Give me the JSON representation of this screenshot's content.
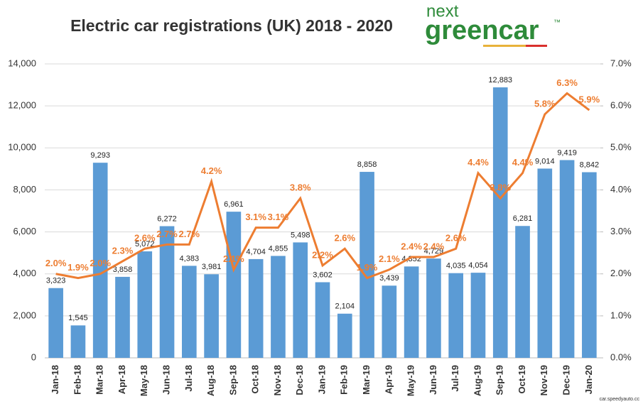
{
  "logo": {
    "word1": "next",
    "word2": "greencar",
    "mark": "™"
  },
  "watermark": "car.speedyauto.cc",
  "chart_data": {
    "type": "bar-line",
    "title": "Electric car registrations (UK) 2018 - 2020",
    "categories": [
      "Jan-18",
      "Feb-18",
      "Mar-18",
      "Apr-18",
      "May-18",
      "Jun-18",
      "Jul-18",
      "Aug-18",
      "Sep-18",
      "Oct-18",
      "Nov-18",
      "Dec-18",
      "Jan-19",
      "Feb-19",
      "Mar-19",
      "Apr-19",
      "May-19",
      "Jun-19",
      "Jul-19",
      "Aug-19",
      "Sep-19",
      "Oct-19",
      "Nov-19",
      "Dec-19",
      "Jan-20"
    ],
    "series": [
      {
        "type": "bar",
        "color": "#5b9bd5",
        "values": [
          3323,
          1545,
          9293,
          3858,
          5072,
          6272,
          4383,
          3981,
          6961,
          4704,
          4855,
          5498,
          3602,
          2104,
          8858,
          3439,
          4352,
          4729,
          4035,
          4054,
          12883,
          6281,
          9014,
          9419,
          8842
        ],
        "value_labels": [
          "3,323",
          "1,545",
          "9,293",
          "3,858",
          "5,072",
          "6,272",
          "4,383",
          "3,981",
          "6,961",
          "4,704",
          "4,855",
          "5,498",
          "3,602",
          "2,104",
          "8,858",
          "3,439",
          "4,352",
          "4,729",
          "4,035",
          "4,054",
          "12,883",
          "6,281",
          "9,014",
          "9,419",
          "8,842"
        ]
      },
      {
        "type": "line",
        "axis": "y2",
        "color": "#ed7d31",
        "values": [
          2.0,
          1.9,
          2.0,
          2.3,
          2.6,
          2.7,
          2.7,
          4.2,
          2.1,
          3.1,
          3.1,
          3.8,
          2.2,
          2.6,
          1.9,
          2.1,
          2.4,
          2.4,
          2.6,
          4.4,
          3.8,
          4.4,
          5.8,
          6.3,
          5.9
        ],
        "value_labels": [
          "2.0%",
          "1.9%",
          "2.0%",
          "2.3%",
          "2.6%",
          "2.7%",
          "2.7%",
          "4.2%",
          "2.1%",
          "3.1%",
          "3.1%",
          "3.8%",
          "2.2%",
          "2.6%",
          "1.9%",
          "2.1%",
          "2.4%",
          "2.4%",
          "2.6%",
          "4.4%",
          "3.8%",
          "4.4%",
          "5.8%",
          "6.3%",
          "5.9%"
        ]
      }
    ],
    "ylim": [
      0,
      14000
    ],
    "yticks": [
      0,
      {
        "value": 2000,
        "label": "2,000"
      },
      {
        "value": 4000,
        "label": "4,000"
      },
      {
        "value": 6000,
        "label": "6,000"
      },
      {
        "value": 8000,
        "label": "8,000"
      },
      {
        "value": 10000,
        "label": "10,000"
      },
      {
        "value": 12000,
        "label": "12,000"
      },
      {
        "value": 14000,
        "label": "14,000"
      }
    ],
    "y2lim": [
      0,
      7
    ],
    "y2ticks": [
      {
        "value": 0,
        "label": "0.0%"
      },
      {
        "value": 1,
        "label": "1.0%"
      },
      {
        "value": 2,
        "label": "2.0%"
      },
      {
        "value": 3,
        "label": "3.0%"
      },
      {
        "value": 4,
        "label": "4.0%"
      },
      {
        "value": 5,
        "label": "5.0%"
      },
      {
        "value": 6,
        "label": "6.0%"
      },
      {
        "value": 7,
        "label": "7.0%"
      }
    ],
    "grid": true
  }
}
